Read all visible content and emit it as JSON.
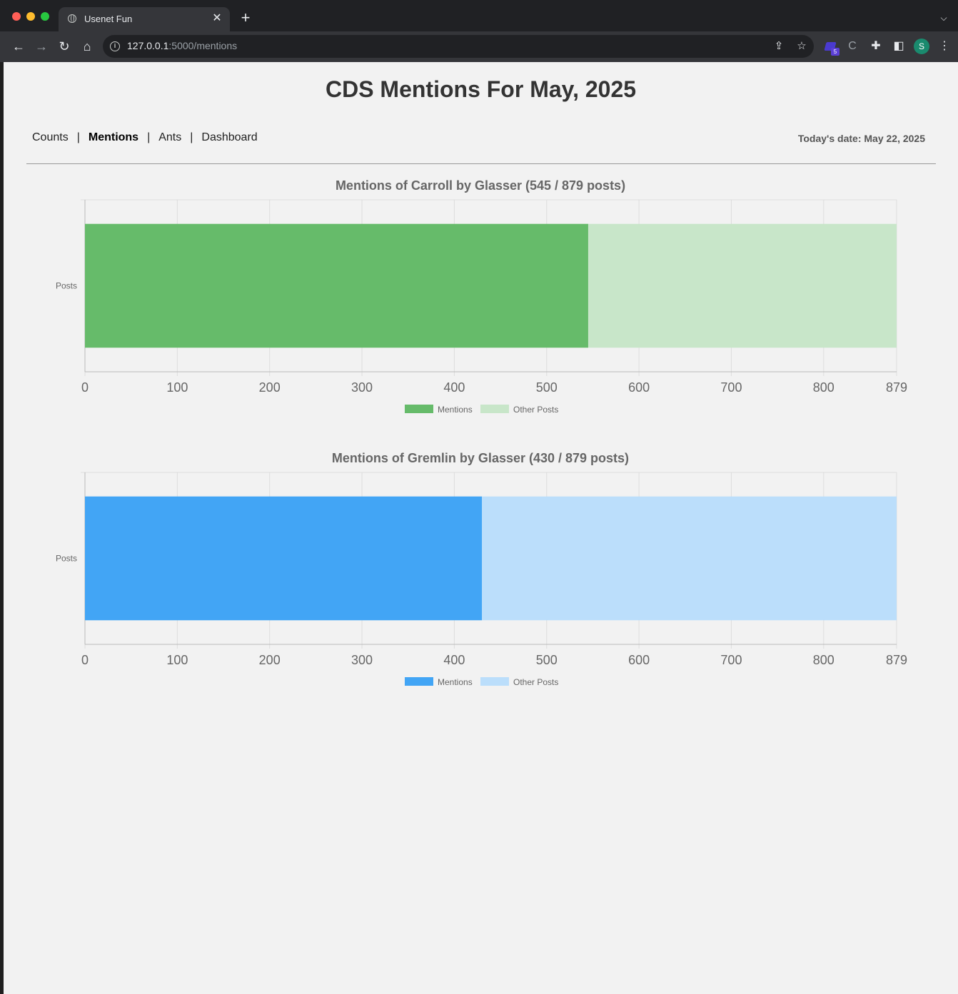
{
  "browser": {
    "tab_title": "Usenet Fun",
    "url_host": "127.0.0.1",
    "url_rest": ":5000/mentions",
    "extension_badge": "5",
    "profile_initial": "S"
  },
  "page": {
    "title": "CDS Mentions For May, 2025",
    "nav": [
      {
        "label": "Counts",
        "active": false
      },
      {
        "label": "Mentions",
        "active": true
      },
      {
        "label": "Ants",
        "active": false
      },
      {
        "label": "Dashboard",
        "active": false
      }
    ],
    "nav_separator": "|",
    "today": "Today's date: May 22, 2025"
  },
  "chart_data": [
    {
      "type": "bar",
      "orientation": "horizontal",
      "stacked": true,
      "title": "Mentions of Carroll by Glasser (545 / 879 posts)",
      "categories": [
        "Posts"
      ],
      "series": [
        {
          "name": "Mentions",
          "values": [
            545
          ],
          "color": "#66bb6a"
        },
        {
          "name": "Other Posts",
          "values": [
            334
          ],
          "color": "#c8e6c9"
        }
      ],
      "xlim": [
        0,
        879
      ],
      "xticks": [
        0,
        100,
        200,
        300,
        400,
        500,
        600,
        700,
        800,
        879
      ],
      "grid": true,
      "legend": "bottom"
    },
    {
      "type": "bar",
      "orientation": "horizontal",
      "stacked": true,
      "title": "Mentions of Gremlin by Glasser (430 / 879 posts)",
      "categories": [
        "Posts"
      ],
      "series": [
        {
          "name": "Mentions",
          "values": [
            430
          ],
          "color": "#42a5f5"
        },
        {
          "name": "Other Posts",
          "values": [
            449
          ],
          "color": "#bbdefb"
        }
      ],
      "xlim": [
        0,
        879
      ],
      "xticks": [
        0,
        100,
        200,
        300,
        400,
        500,
        600,
        700,
        800,
        879
      ],
      "grid": true,
      "legend": "bottom"
    }
  ]
}
